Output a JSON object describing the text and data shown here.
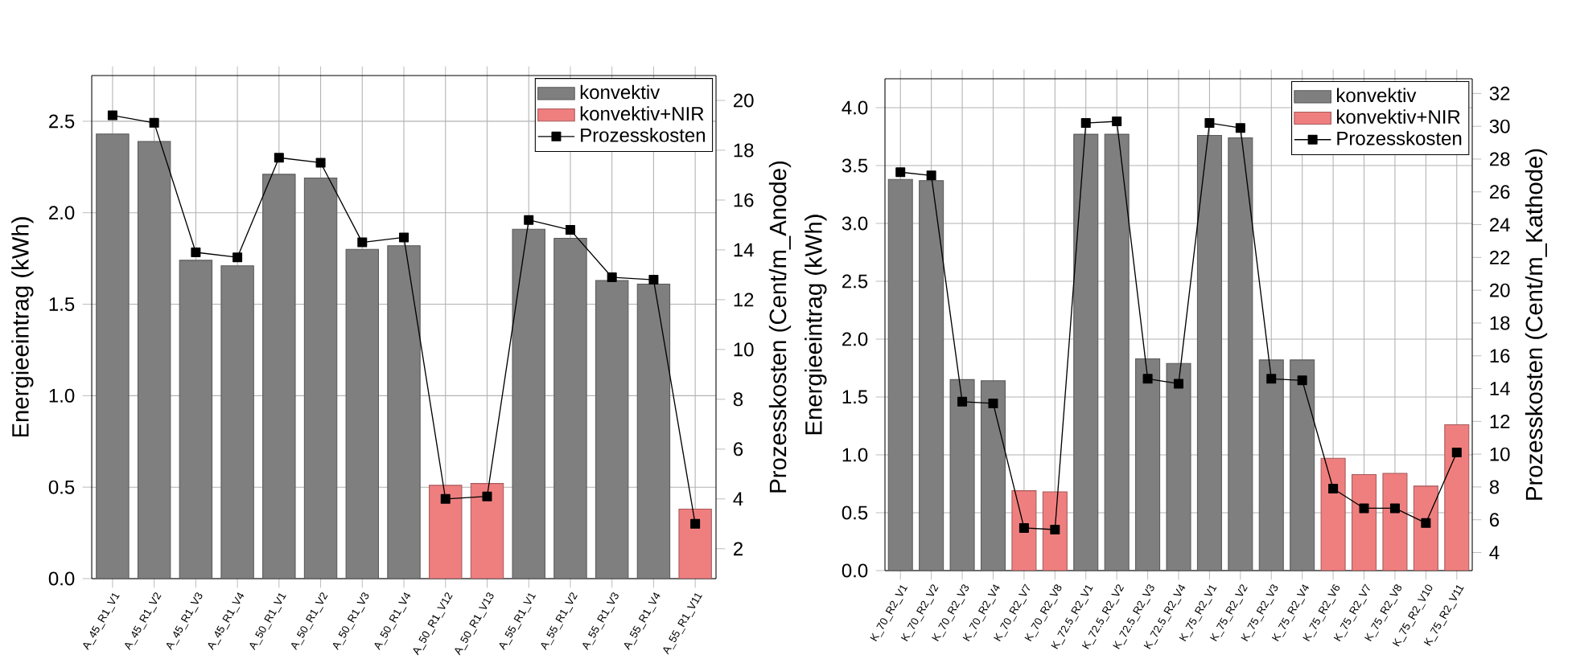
{
  "chart_data": [
    {
      "type": "bar",
      "ylabel": "Energieeintrag (kWh)",
      "y2label": "Prozesskosten (Cent/m_Anode)",
      "categories": [
        "A_45_R1_V1",
        "A_45_R1_V2",
        "A_45_R1_V3",
        "A_45_R1_V4",
        "A_50_R1_V1",
        "A_50_R1_V2",
        "A_50_R1_V3",
        "A_50_R1_V4",
        "A_50_R1_V12",
        "A_50_R1_V13",
        "A_55_R1_V1",
        "A_55_R1_V2",
        "A_55_R1_V3",
        "A_55_R1_V4",
        "A_55_R1_V11"
      ],
      "series": [
        {
          "name": "konvektiv",
          "color": "#7f7f7f",
          "values": [
            2.43,
            2.39,
            1.74,
            1.71,
            2.21,
            2.19,
            1.8,
            1.82,
            null,
            null,
            1.91,
            1.86,
            1.63,
            1.61,
            null
          ]
        },
        {
          "name": "konvektiv+NIR",
          "color": "#ef7f7f",
          "values": [
            null,
            null,
            null,
            null,
            null,
            null,
            null,
            null,
            0.51,
            0.52,
            null,
            null,
            null,
            null,
            0.38
          ]
        },
        {
          "name": "Prozesskosten",
          "type": "line",
          "axis": "y2",
          "color": "#000000",
          "marker": "square",
          "values": [
            19.4,
            19.1,
            13.9,
            13.7,
            17.7,
            17.5,
            14.3,
            14.5,
            4.0,
            4.1,
            15.2,
            14.8,
            12.9,
            12.8,
            3.0
          ]
        }
      ],
      "ylim": [
        0,
        2.75
      ],
      "yticks": [
        {
          "value": 0,
          "label": "0.0"
        },
        0.5,
        {
          "value": 1,
          "label": "1.0"
        },
        1.5,
        {
          "value": 2,
          "label": "2.0"
        },
        2.5
      ],
      "y2lim": [
        0.8,
        21
      ],
      "y2ticks": [
        2,
        4,
        6,
        8,
        10,
        12,
        14,
        16,
        18,
        20
      ],
      "grid": true,
      "legend": "top right"
    },
    {
      "type": "bar",
      "ylabel": "Energieeintrag (kWh)",
      "y2label": "Prozesskosten (Cent/m_Kathode)",
      "categories": [
        "K_70_R2_V1",
        "K_70_R2_V2",
        "K_70_R2_V3",
        "K_70_R2_V4",
        "K_70_R2_V7",
        "K_70_R2_V8",
        "K_72.5_R2_V1",
        "K_72.5_R2_V2",
        "K_72.5_R2_V3",
        "K_72.5_R2_V4",
        "K_75_R2_V1",
        "K_75_R2_V2",
        "K_75_R2_V3",
        "K_75_R2_V4",
        "K_75_R2_V6",
        "K_75_R2_V7",
        "K_75_R2_V8",
        "K_75_R2_V10",
        "K_75_R2_V11"
      ],
      "series": [
        {
          "name": "konvektiv",
          "color": "#7f7f7f",
          "values": [
            3.38,
            3.37,
            1.65,
            1.64,
            null,
            null,
            3.77,
            3.77,
            1.83,
            1.79,
            3.76,
            3.74,
            1.82,
            1.82,
            null,
            null,
            null,
            null,
            null
          ]
        },
        {
          "name": "konvektiv+NIR",
          "color": "#ef7f7f",
          "values": [
            null,
            null,
            null,
            null,
            0.69,
            0.68,
            null,
            null,
            null,
            null,
            null,
            null,
            null,
            null,
            0.97,
            0.83,
            0.84,
            0.73,
            1.26
          ]
        },
        {
          "name": "Prozesskosten",
          "type": "line",
          "axis": "y2",
          "color": "#000000",
          "marker": "square",
          "values": [
            27.2,
            27.0,
            13.2,
            13.1,
            5.5,
            5.4,
            30.2,
            30.3,
            14.6,
            14.3,
            30.2,
            29.9,
            14.6,
            14.5,
            7.9,
            6.7,
            6.7,
            5.8,
            10.1
          ]
        }
      ],
      "ylim": [
        0,
        4.25
      ],
      "yticks": [
        {
          "value": 0,
          "label": "0.0"
        },
        0.5,
        {
          "value": 1,
          "label": "1.0"
        },
        1.5,
        {
          "value": 2,
          "label": "2.0"
        },
        2.5,
        {
          "value": 3,
          "label": "3.0"
        },
        3.5,
        {
          "value": 4,
          "label": "4.0"
        }
      ],
      "y2lim": [
        2.9,
        32.9
      ],
      "y2ticks": [
        4,
        6,
        8,
        10,
        12,
        14,
        16,
        18,
        20,
        22,
        24,
        26,
        28,
        30,
        32
      ],
      "grid": true,
      "legend": "top right"
    }
  ]
}
